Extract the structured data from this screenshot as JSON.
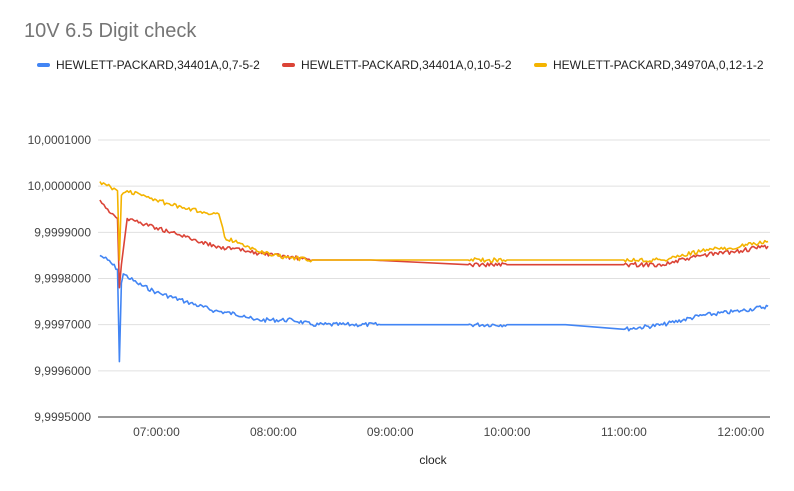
{
  "chart_data": {
    "type": "line",
    "title": "10V 6.5 Digit check",
    "xlabel": "clock",
    "ylabel": "",
    "x_ticks": [
      "07:00:00",
      "08:00:00",
      "09:00:00",
      "10:00:00",
      "11:00:00",
      "12:00:00"
    ],
    "y_ticks": [
      "9,9995000",
      "9,9996000",
      "9,9997000",
      "9,9998000",
      "9,9999000",
      "10,0000000",
      "10,0001000"
    ],
    "ylim": [
      9.9995,
      10.0001
    ],
    "xlim": [
      "06:30:00",
      "12:15:00"
    ],
    "grid": "horizontal",
    "legend_position": "top",
    "series": [
      {
        "name": "HEWLETT-PACKARD,34401A,0,7-5-2",
        "color": "#4285f4",
        "points": [
          [
            "06:31:00",
            9.99985
          ],
          [
            "06:35:00",
            9.99984
          ],
          [
            "06:40:00",
            9.99982
          ],
          [
            "06:41:00",
            9.99962
          ],
          [
            "06:42:00",
            9.99979
          ],
          [
            "06:43:00",
            9.99981
          ],
          [
            "06:50:00",
            9.99979
          ],
          [
            "07:00:00",
            9.99977
          ],
          [
            "07:15:00",
            9.99975
          ],
          [
            "07:30:00",
            9.99973
          ],
          [
            "07:45:00",
            9.99972
          ],
          [
            "07:50:00",
            9.99971
          ],
          [
            "08:10:00",
            9.99971
          ],
          [
            "08:20:00",
            9.9997
          ],
          [
            "08:40:00",
            9.9997
          ],
          [
            "08:55:00",
            9.9997
          ],
          [
            "09:40:00",
            9.9997
          ],
          [
            "10:00:00",
            9.9997
          ],
          [
            "10:30:00",
            9.9997
          ],
          [
            "11:00:00",
            9.99969
          ],
          [
            "11:20:00",
            9.9997
          ],
          [
            "11:40:00",
            9.99972
          ],
          [
            "12:00:00",
            9.99973
          ],
          [
            "12:14:00",
            9.99974
          ]
        ]
      },
      {
        "name": "HEWLETT-PACKARD,34401A,0,10-5-2",
        "color": "#db4437",
        "points": [
          [
            "06:31:00",
            9.99997
          ],
          [
            "06:35:00",
            9.99995
          ],
          [
            "06:40:00",
            9.99993
          ],
          [
            "06:41:00",
            9.99978
          ],
          [
            "06:42:00",
            9.99983
          ],
          [
            "06:45:00",
            9.99993
          ],
          [
            "07:00:00",
            9.99991
          ],
          [
            "07:15:00",
            9.99989
          ],
          [
            "07:30:00",
            9.99987
          ],
          [
            "07:45:00",
            9.99986
          ],
          [
            "08:00:00",
            9.99985
          ],
          [
            "08:20:00",
            9.99984
          ],
          [
            "08:50:00",
            9.99984
          ],
          [
            "09:40:00",
            9.99983
          ],
          [
            "10:00:00",
            9.99983
          ],
          [
            "10:30:00",
            9.99983
          ],
          [
            "11:00:00",
            9.99983
          ],
          [
            "11:20:00",
            9.99983
          ],
          [
            "11:40:00",
            9.99985
          ],
          [
            "12:00:00",
            9.99986
          ],
          [
            "12:14:00",
            9.99987
          ]
        ]
      },
      {
        "name": "HEWLETT-PACKARD,34970A,0,12-1-2",
        "color": "#f4b400",
        "points": [
          [
            "06:31:00",
            10.00001
          ],
          [
            "06:40:00",
            9.99999
          ],
          [
            "06:41:00",
            9.99984
          ],
          [
            "06:42:00",
            9.99998
          ],
          [
            "06:45:00",
            9.99999
          ],
          [
            "07:00:00",
            9.99997
          ],
          [
            "07:15:00",
            9.99995
          ],
          [
            "07:32:00",
            9.99994
          ],
          [
            "07:35:00",
            9.99989
          ],
          [
            "07:45:00",
            9.99987
          ],
          [
            "08:00:00",
            9.99985
          ],
          [
            "08:20:00",
            9.99984
          ],
          [
            "08:50:00",
            9.99984
          ],
          [
            "09:40:00",
            9.99984
          ],
          [
            "10:00:00",
            9.99984
          ],
          [
            "10:30:00",
            9.99984
          ],
          [
            "11:00:00",
            9.99984
          ],
          [
            "11:20:00",
            9.99984
          ],
          [
            "11:40:00",
            9.99986
          ],
          [
            "12:00:00",
            9.99987
          ],
          [
            "12:14:00",
            9.99988
          ]
        ]
      }
    ]
  }
}
